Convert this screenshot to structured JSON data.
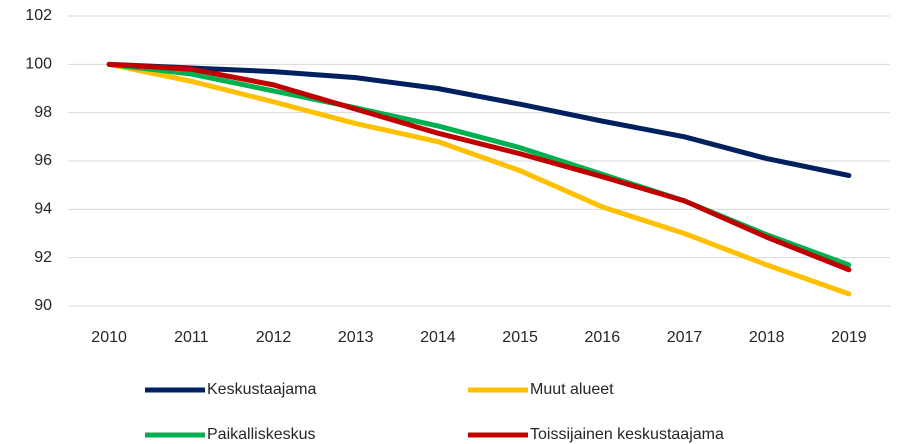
{
  "chart_data": {
    "type": "line",
    "categories": [
      "2010",
      "2011",
      "2012",
      "2013",
      "2014",
      "2015",
      "2016",
      "2017",
      "2018",
      "2019"
    ],
    "series": [
      {
        "name": "Keskustaajama",
        "color": "#002060",
        "values": [
          100,
          99.85,
          99.7,
          99.45,
          99.0,
          98.35,
          97.65,
          97.0,
          96.1,
          95.4
        ]
      },
      {
        "name": "Muut alueet",
        "color": "#ffc000",
        "values": [
          100,
          99.3,
          98.45,
          97.55,
          96.8,
          95.6,
          94.1,
          93.0,
          91.7,
          90.5
        ]
      },
      {
        "name": "Paikalliskeskus",
        "color": "#00b050",
        "values": [
          100,
          99.6,
          98.9,
          98.2,
          97.45,
          96.55,
          95.45,
          94.35,
          92.95,
          91.7
        ]
      },
      {
        "name": "Toissijainen keskustaajama",
        "color": "#c00000",
        "values": [
          100,
          99.8,
          99.15,
          98.15,
          97.15,
          96.3,
          95.35,
          94.35,
          92.85,
          91.5
        ]
      }
    ],
    "ylim": [
      90,
      102
    ],
    "yticks": [
      90,
      92,
      94,
      96,
      98,
      100,
      102
    ],
    "grid": true,
    "legend": "bottom"
  }
}
